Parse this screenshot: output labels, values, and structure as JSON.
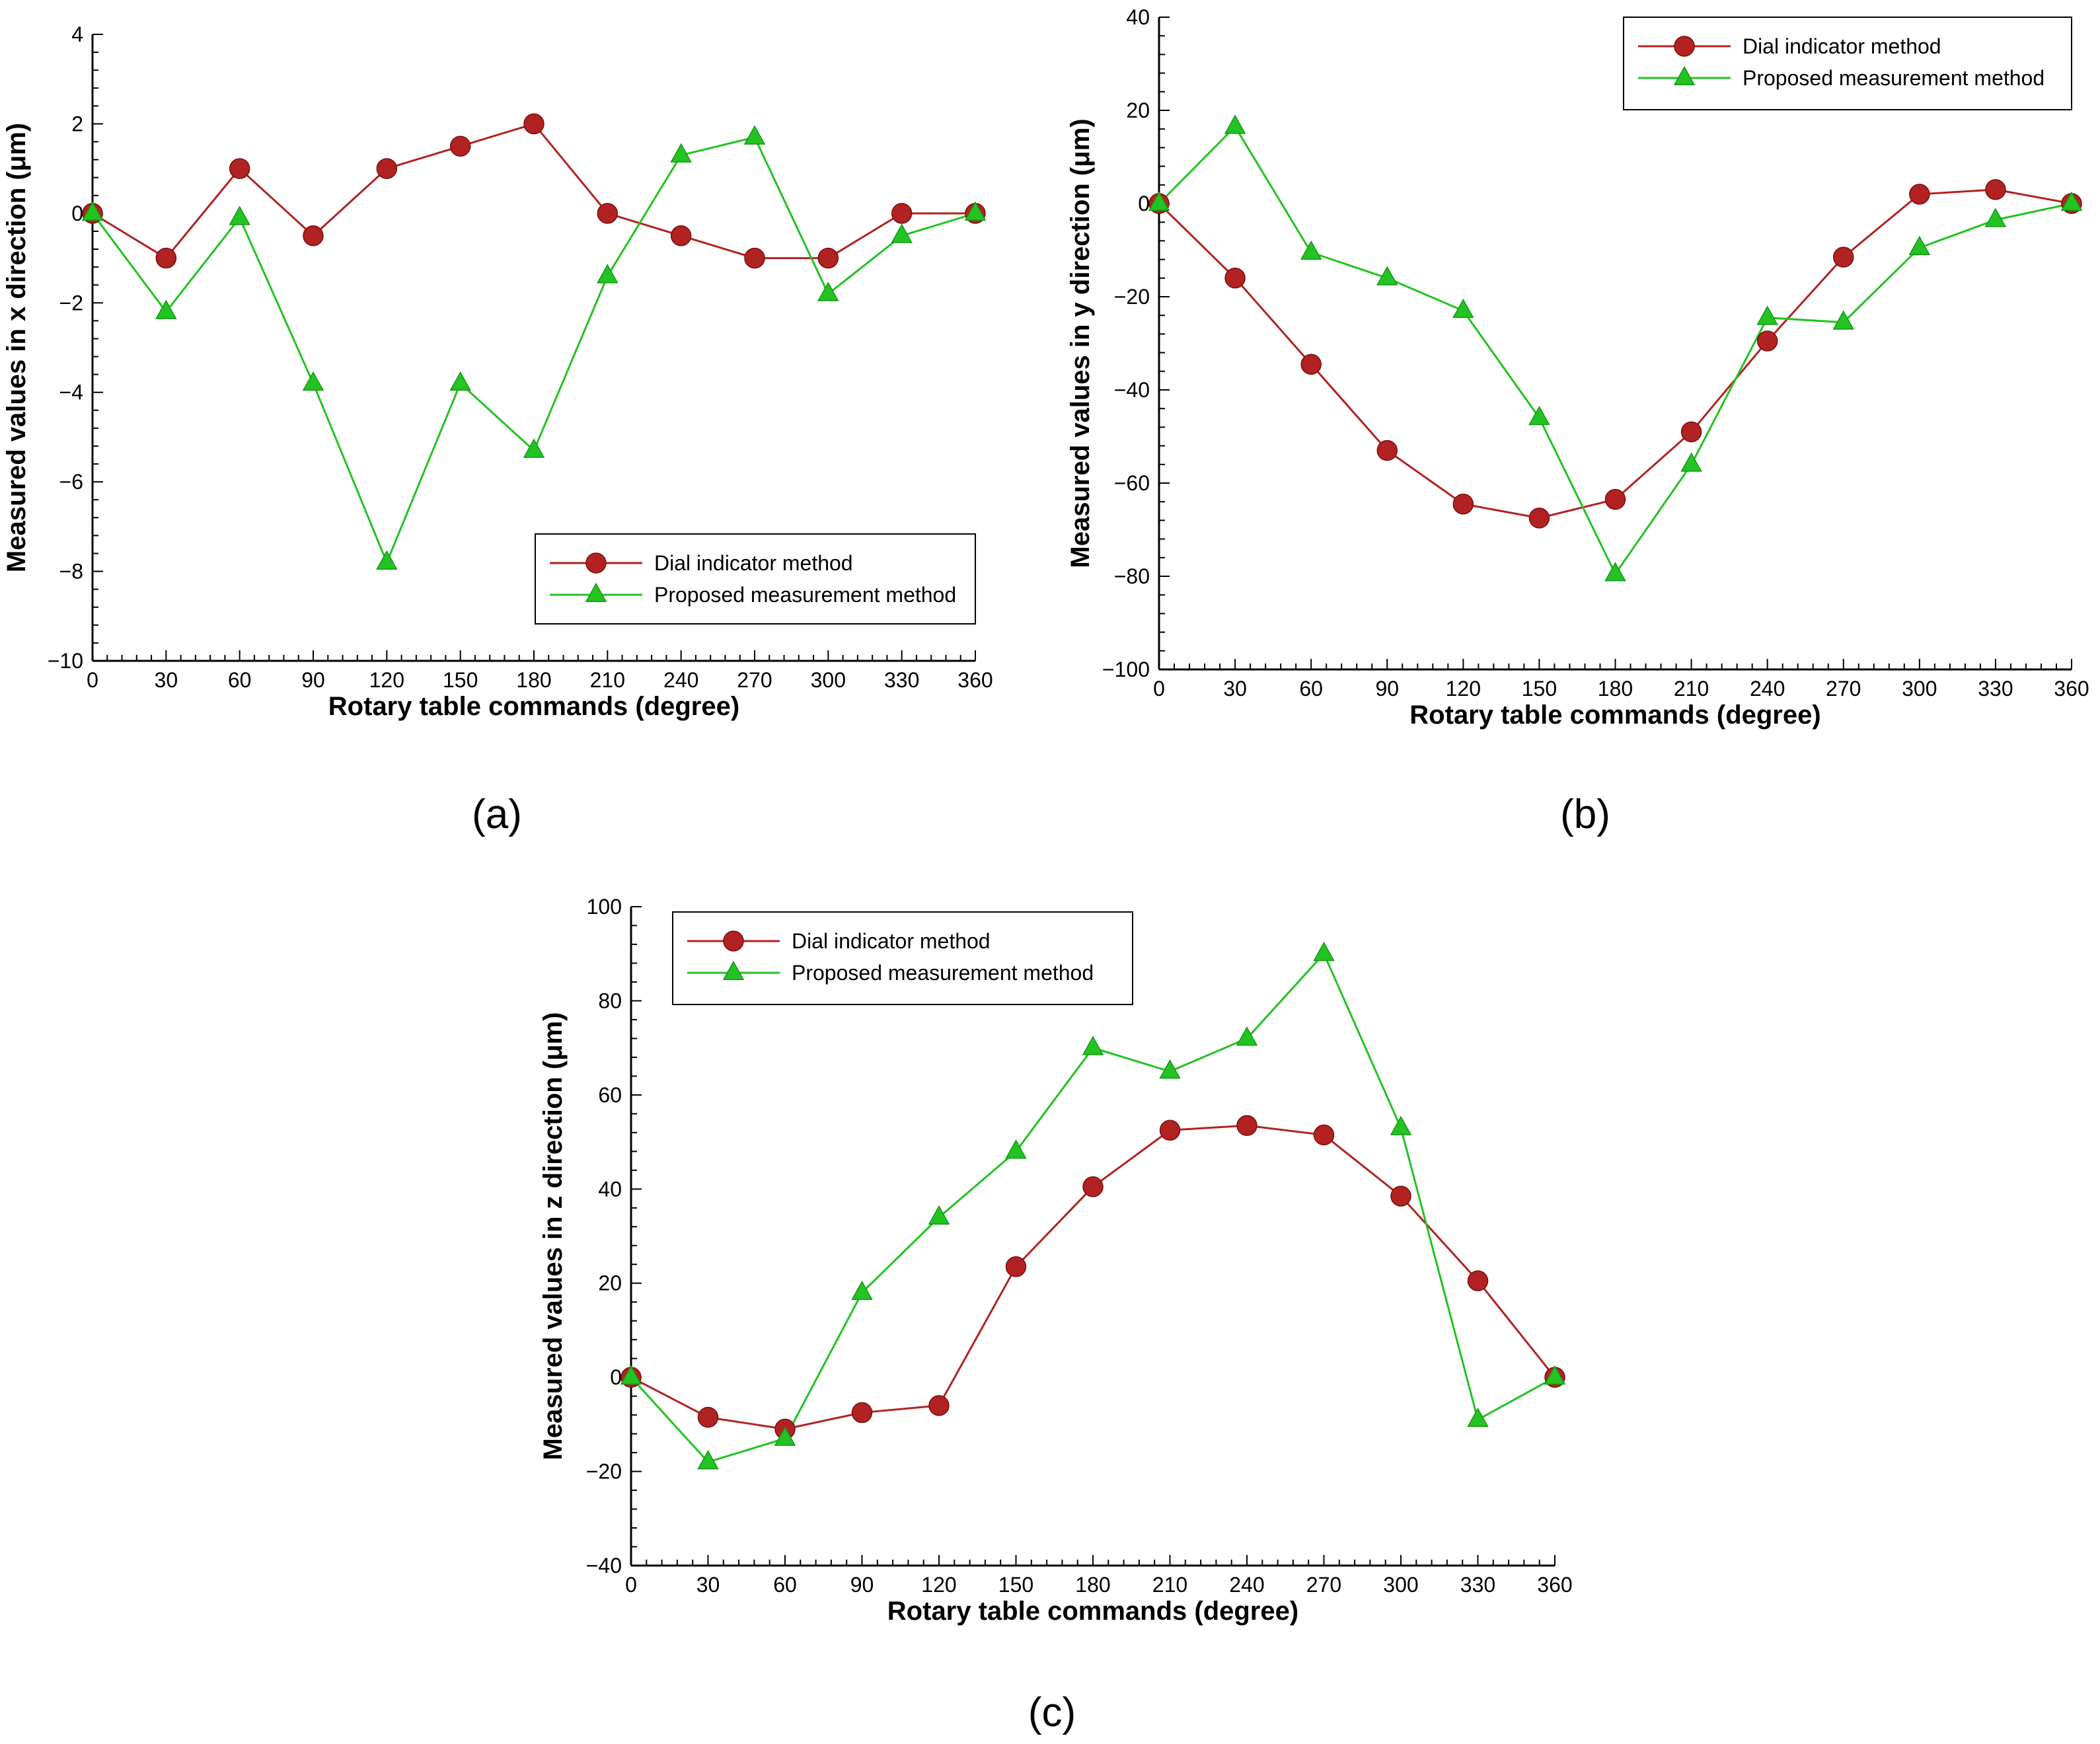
{
  "chart_data": [
    {
      "panel": "a",
      "type": "line",
      "caption": "(a)",
      "title": "",
      "xlabel": "Rotary table commands (degree)",
      "ylabel": "Measured values in x direction (μm)",
      "xlim": [
        0,
        360
      ],
      "ylim": [
        -10,
        4
      ],
      "xticks": [
        0,
        30,
        60,
        90,
        120,
        150,
        180,
        210,
        240,
        270,
        300,
        330,
        360
      ],
      "yticks": [
        -10,
        -8,
        -6,
        -4,
        -2,
        0,
        2,
        4
      ],
      "x": [
        0,
        30,
        60,
        90,
        120,
        150,
        180,
        210,
        240,
        270,
        300,
        330,
        360
      ],
      "legend_position": "lower-right",
      "series": [
        {
          "name": "Dial indicator method",
          "color": "#b22222",
          "marker": "circle",
          "values": [
            0,
            -1,
            1,
            -0.5,
            1,
            1.5,
            2,
            0,
            -0.5,
            -1,
            -1,
            0,
            0
          ]
        },
        {
          "name": "Proposed measurement method",
          "color": "#22c322",
          "marker": "triangle",
          "values": [
            0,
            -2.2,
            -0.1,
            -3.8,
            -7.8,
            -3.8,
            -5.3,
            -1.4,
            1.3,
            1.7,
            -1.8,
            -0.5,
            0
          ]
        }
      ]
    },
    {
      "panel": "b",
      "type": "line",
      "caption": "(b)",
      "title": "",
      "xlabel": "Rotary table commands (degree)",
      "ylabel": "Measured values in y direction (μm)",
      "xlim": [
        0,
        360
      ],
      "ylim": [
        -100,
        40
      ],
      "xticks": [
        0,
        30,
        60,
        90,
        120,
        150,
        180,
        210,
        240,
        270,
        300,
        330,
        360
      ],
      "yticks": [
        -100,
        -80,
        -60,
        -40,
        -20,
        0,
        20,
        40
      ],
      "x": [
        0,
        30,
        60,
        90,
        120,
        150,
        180,
        210,
        240,
        270,
        300,
        330,
        360
      ],
      "legend_position": "top-right",
      "series": [
        {
          "name": "Dial indicator method",
          "color": "#b22222",
          "marker": "circle",
          "values": [
            0,
            -16,
            -34.5,
            -53,
            -64.5,
            -67.5,
            -63.5,
            -49,
            -29.5,
            -11.5,
            2,
            3,
            0
          ]
        },
        {
          "name": "Proposed measurement method",
          "color": "#22c322",
          "marker": "triangle",
          "values": [
            0,
            16.5,
            -10.5,
            -16,
            -23,
            -46,
            -79.5,
            -56,
            -24.5,
            -25.5,
            -9.5,
            -3.5,
            0
          ]
        }
      ]
    },
    {
      "panel": "c",
      "type": "line",
      "caption": "(c)",
      "title": "",
      "xlabel": "Rotary table commands (degree)",
      "ylabel": "Measured values in z direction (μm)",
      "xlim": [
        0,
        360
      ],
      "ylim": [
        -40,
        100
      ],
      "xticks": [
        0,
        30,
        60,
        90,
        120,
        150,
        180,
        210,
        240,
        270,
        300,
        330,
        360
      ],
      "yticks": [
        -40,
        -20,
        0,
        20,
        40,
        60,
        80,
        100
      ],
      "x": [
        0,
        30,
        60,
        90,
        120,
        150,
        180,
        210,
        240,
        270,
        300,
        330,
        360
      ],
      "legend_position": "top-left",
      "series": [
        {
          "name": "Dial indicator method",
          "color": "#b22222",
          "marker": "circle",
          "values": [
            0,
            -8.5,
            -11,
            -7.5,
            -6,
            23.5,
            40.5,
            52.5,
            53.5,
            51.5,
            38.5,
            20.5,
            0
          ]
        },
        {
          "name": "Proposed measurement method",
          "color": "#22c322",
          "marker": "triangle",
          "values": [
            0,
            -18,
            -13,
            18,
            34,
            48,
            70,
            65,
            72,
            90,
            53,
            -9,
            0
          ]
        }
      ]
    }
  ]
}
